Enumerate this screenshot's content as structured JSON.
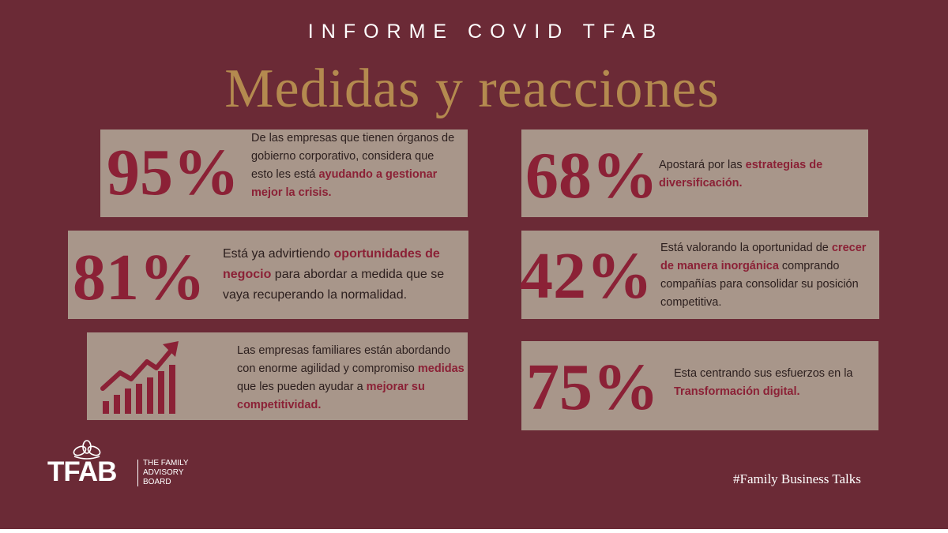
{
  "header": {
    "kicker": "INFORME COVID TFAB",
    "title": "Medidas y reacciones"
  },
  "stats": {
    "s95": {
      "pct": "95%",
      "pre": "De las empresas que tienen órganos de gobierno corporativo, considera que esto les está ",
      "hl1": "ayudando a gestionar mejor la crisis.",
      "mid": "",
      "hl2": ""
    },
    "s68": {
      "pct": "68%",
      "pre": "Apostará por las ",
      "hl1": "estrategias de diversificación."
    },
    "s81": {
      "pct": "81%",
      "pre": "Está ya advirtiendo ",
      "hl1": "oportunidades de negocio",
      "post": " para abordar a medida que se vaya recuperando la normalidad."
    },
    "s42": {
      "pct": "42%",
      "pre": "Está valorando la oportunidad de ",
      "hl1": "crecer de manera inorgánica",
      "post": " comprando compañías para consolidar su posición competitiva."
    },
    "growth": {
      "pre": "Las empresas familiares están abordando con enorme agilidad y compromiso ",
      "hl1": "medidas",
      "mid": " que les pueden ayudar a ",
      "hl2": "mejorar su competitividad."
    },
    "s75": {
      "pct": "75%",
      "pre": "Esta centrando sus esfuerzos en la ",
      "hl1": "Transformación digital."
    }
  },
  "footer": {
    "logo_word": "TFAB",
    "logo_tag_1": "THE FAMILY",
    "logo_tag_2": "ADVISORY",
    "logo_tag_3": "BOARD",
    "hashtag": "#Family Business Talks"
  },
  "colors": {
    "background": "#6b2a36",
    "card": "#a8968a",
    "accent": "#8b2136",
    "title_gold": "#b48a4f"
  }
}
